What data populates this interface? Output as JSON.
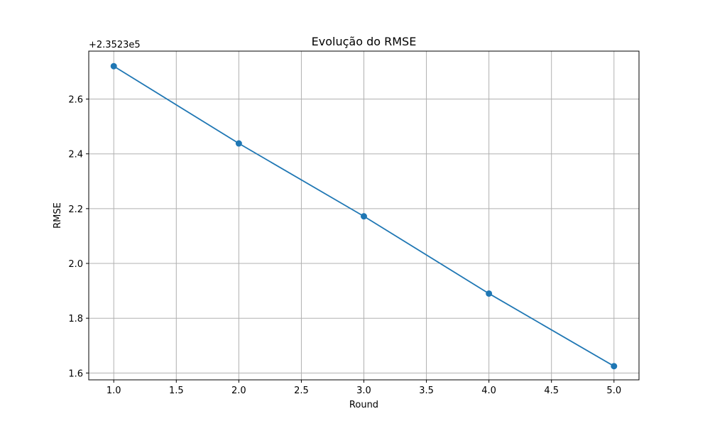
{
  "chart_data": {
    "type": "line",
    "title": "Evolução do RMSE",
    "xlabel": "Round",
    "ylabel": "RMSE",
    "y_offset_label": "+2.3523e5",
    "xlim": [
      0.8,
      5.2
    ],
    "ylim": [
      1.575,
      2.775
    ],
    "x_ticks": [
      1.0,
      1.5,
      2.0,
      2.5,
      3.0,
      3.5,
      4.0,
      4.5,
      5.0
    ],
    "x_tick_labels": [
      "1.0",
      "1.5",
      "2.0",
      "2.5",
      "3.0",
      "3.5",
      "4.0",
      "4.5",
      "5.0"
    ],
    "y_ticks": [
      1.6,
      1.8,
      2.0,
      2.2,
      2.4,
      2.6
    ],
    "y_tick_labels": [
      "1.6",
      "1.8",
      "2.0",
      "2.2",
      "2.4",
      "2.6"
    ],
    "grid": true,
    "series": [
      {
        "x": [
          1,
          2,
          3,
          4,
          5
        ],
        "values": [
          2.72,
          2.438,
          2.172,
          1.89,
          1.625
        ],
        "color": "#1f77b4",
        "marker": "circle"
      }
    ]
  }
}
